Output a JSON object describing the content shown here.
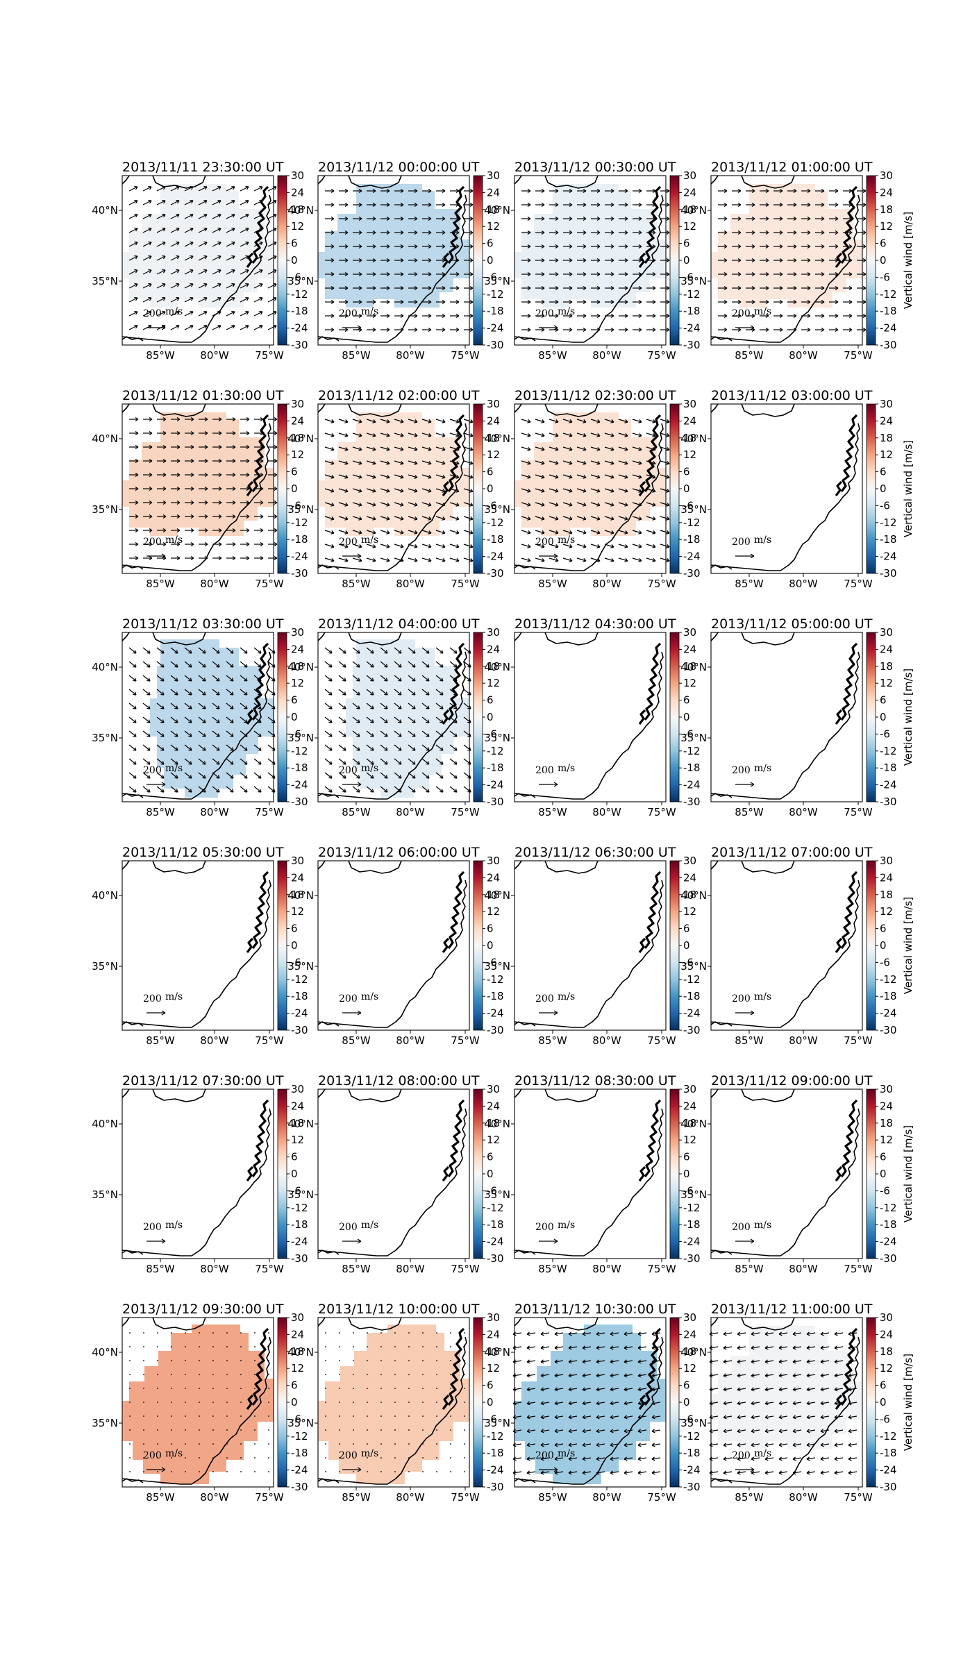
{
  "figure": {
    "colorbar": {
      "label": "Vertical wind [m/s]",
      "ticks": [
        "30",
        "24",
        "18",
        "12",
        "6",
        "0",
        "-6",
        "-12",
        "-18",
        "-24",
        "-30"
      ],
      "colormap": "RdBu_r",
      "range": [
        -30,
        30
      ]
    },
    "axes": {
      "x_ticks": [
        "85°W",
        "80°W",
        "75°W"
      ],
      "y_ticks": [
        "40°N",
        "35°N"
      ]
    },
    "quiver_key": {
      "value": "200",
      "unit": "m/s"
    }
  },
  "panels": [
    {
      "title": "2013/11/11 23:30:00 UT",
      "vertical_wind": 0,
      "color": "#eef2f5",
      "coverage": "full",
      "arrows": "ne"
    },
    {
      "title": "2013/11/12 00:00:00 UT",
      "vertical_wind": -10,
      "color": "#bcd8ea",
      "coverage": "full",
      "arrows": "e"
    },
    {
      "title": "2013/11/12 00:30:00 UT",
      "vertical_wind": -2,
      "color": "#e8f0f5",
      "coverage": "full",
      "arrows": "e"
    },
    {
      "title": "2013/11/12 01:00:00 UT",
      "vertical_wind": 3,
      "color": "#fbe7dc",
      "coverage": "full",
      "arrows": "e"
    },
    {
      "title": "2013/11/12 01:30:00 UT",
      "vertical_wind": 8,
      "color": "#f8d5c0",
      "coverage": "full",
      "arrows": "e"
    },
    {
      "title": "2013/11/12 02:00:00 UT",
      "vertical_wind": 4,
      "color": "#fbe4d6",
      "coverage": "full",
      "arrows": "se"
    },
    {
      "title": "2013/11/12 02:30:00 UT",
      "vertical_wind": 5,
      "color": "#fbe1d2",
      "coverage": "full",
      "arrows": "se"
    },
    {
      "title": "2013/11/12 03:00:00 UT",
      "vertical_wind": null,
      "color": "none",
      "coverage": "none",
      "arrows": "none"
    },
    {
      "title": "2013/11/12 03:30:00 UT",
      "vertical_wind": -10,
      "color": "#bdd8eb",
      "coverage": "tall",
      "arrows": "sse"
    },
    {
      "title": "2013/11/12 04:00:00 UT",
      "vertical_wind": -4,
      "color": "#e0ebf3",
      "coverage": "tall",
      "arrows": "sse"
    },
    {
      "title": "2013/11/12 04:30:00 UT",
      "vertical_wind": null,
      "color": "none",
      "coverage": "none",
      "arrows": "none"
    },
    {
      "title": "2013/11/12 05:00:00 UT",
      "vertical_wind": null,
      "color": "none",
      "coverage": "none",
      "arrows": "none"
    },
    {
      "title": "2013/11/12 05:30:00 UT",
      "vertical_wind": null,
      "color": "none",
      "coverage": "none",
      "arrows": "none"
    },
    {
      "title": "2013/11/12 06:00:00 UT",
      "vertical_wind": null,
      "color": "none",
      "coverage": "none",
      "arrows": "none"
    },
    {
      "title": "2013/11/12 06:30:00 UT",
      "vertical_wind": null,
      "color": "none",
      "coverage": "none",
      "arrows": "none"
    },
    {
      "title": "2013/11/12 07:00:00 UT",
      "vertical_wind": null,
      "color": "none",
      "coverage": "none",
      "arrows": "none"
    },
    {
      "title": "2013/11/12 07:30:00 UT",
      "vertical_wind": null,
      "color": "none",
      "coverage": "none",
      "arrows": "none"
    },
    {
      "title": "2013/11/12 08:00:00 UT",
      "vertical_wind": null,
      "color": "none",
      "coverage": "none",
      "arrows": "none"
    },
    {
      "title": "2013/11/12 08:30:00 UT",
      "vertical_wind": null,
      "color": "none",
      "coverage": "none",
      "arrows": "none"
    },
    {
      "title": "2013/11/12 09:00:00 UT",
      "vertical_wind": null,
      "color": "none",
      "coverage": "none",
      "arrows": "none"
    },
    {
      "title": "2013/11/12 09:30:00 UT",
      "vertical_wind": 13,
      "color": "#f2a688",
      "coverage": "big",
      "arrows": "dots"
    },
    {
      "title": "2013/11/12 10:00:00 UT",
      "vertical_wind": 8,
      "color": "#f8cbb3",
      "coverage": "big",
      "arrows": "dots"
    },
    {
      "title": "2013/11/12 10:30:00 UT",
      "vertical_wind": -12,
      "color": "#9ecbe2",
      "coverage": "big",
      "arrows": "w"
    },
    {
      "title": "2013/11/12 11:00:00 UT",
      "vertical_wind": -1,
      "color": "#f1f3f5",
      "coverage": "full",
      "arrows": "w"
    }
  ]
}
